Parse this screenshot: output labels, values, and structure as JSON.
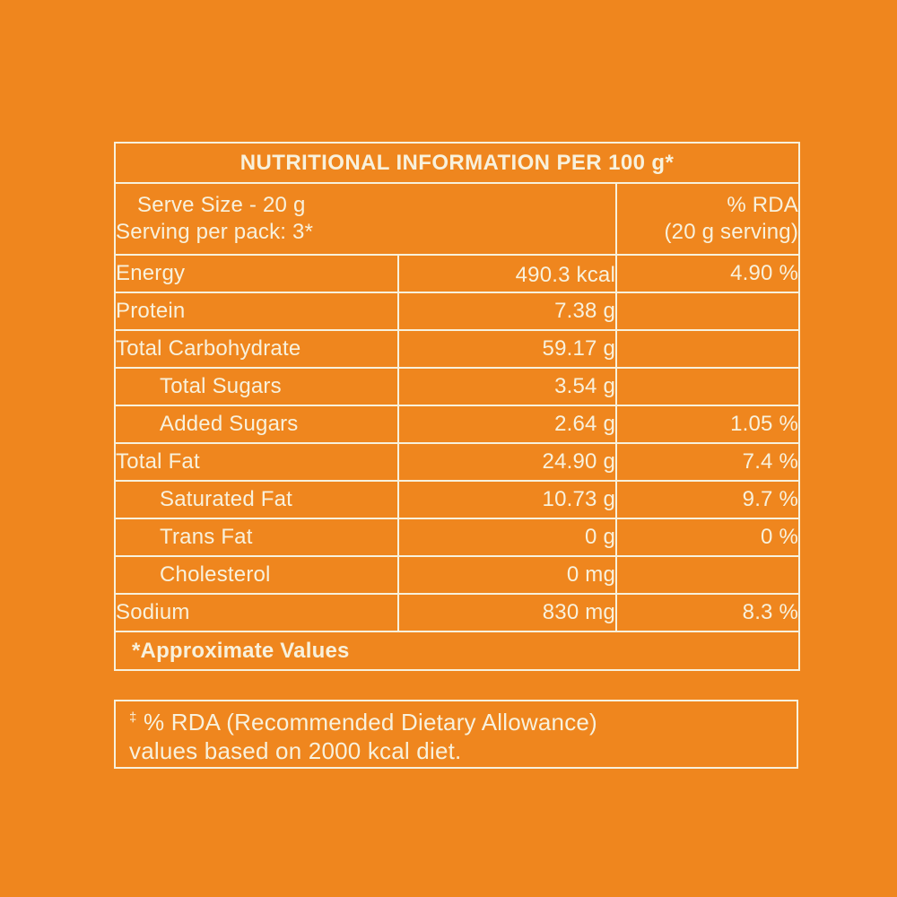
{
  "colors": {
    "background": "#EF861E",
    "ink": "#F8F1DC"
  },
  "table": {
    "title": "NUTRITIONAL INFORMATION PER 100 g*",
    "serve_info": {
      "line1": "Serve Size - 20 g",
      "line2": "Serving per pack: 3*"
    },
    "rda_header": {
      "line1": "% RDA",
      "line2": "(20 g serving)"
    },
    "rows": [
      {
        "label": "Energy",
        "value": "490.3 kcal",
        "rda": "4.90 %"
      },
      {
        "label": "Protein",
        "value": "7.38 g",
        "rda": ""
      },
      {
        "label": "Total Carbohydrate",
        "value": "59.17 g",
        "rda": ""
      },
      {
        "label": "Total Sugars",
        "value": "3.54 g",
        "rda": ""
      },
      {
        "label": "Added Sugars",
        "value": "2.64 g",
        "rda": "1.05 %"
      },
      {
        "label": "Total Fat",
        "value": "24.90 g",
        "rda": "7.4 %"
      },
      {
        "label": "Saturated Fat",
        "value": "10.73 g",
        "rda": "9.7 %"
      },
      {
        "label": "Trans Fat",
        "value": "0 g",
        "rda": "0 %"
      },
      {
        "label": "Cholesterol",
        "value": "0 mg",
        "rda": ""
      },
      {
        "label": "Sodium",
        "value": "830 mg",
        "rda": "8.3 %"
      }
    ],
    "footer_note": "*Approximate Values"
  },
  "footnote": {
    "symbol": "‡",
    "line1": "% RDA (Recommended Dietary Allowance)",
    "line2": "values based on 2000 kcal diet."
  }
}
